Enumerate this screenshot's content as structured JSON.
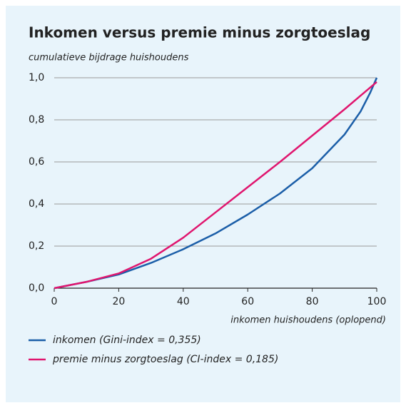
{
  "chart_data": {
    "type": "line",
    "title": "Inkomen versus premie minus zorgtoeslag",
    "y_label": "cumulatieve bijdrage huishoudens",
    "x_label": "inkomen huishoudens (oplopend)",
    "xlim": [
      0,
      100
    ],
    "xticks": [
      0,
      20,
      40,
      60,
      80,
      100
    ],
    "ylim": [
      0,
      1
    ],
    "yticks": [
      {
        "value": 0,
        "label": "0,0"
      },
      {
        "value": 0.2,
        "label": "0,2"
      },
      {
        "value": 0.4,
        "label": "0,4"
      },
      {
        "value": 0.6,
        "label": "0,6"
      },
      {
        "value": 0.8,
        "label": "0,8"
      },
      {
        "value": 1,
        "label": "1,0"
      }
    ],
    "grid": true,
    "series": [
      {
        "name": "inkomen (Gini-index = 0,355)",
        "color": "#1b5ea8",
        "x": [
          0,
          10,
          20,
          30,
          40,
          50,
          60,
          70,
          80,
          90,
          95,
          98,
          100
        ],
        "values": [
          0,
          0.03,
          0.065,
          0.12,
          0.185,
          0.26,
          0.35,
          0.45,
          0.57,
          0.73,
          0.84,
          0.93,
          1.0
        ]
      },
      {
        "name": "premie minus zorgtoeslag (CI-index = 0,185)",
        "color": "#e0156e",
        "x": [
          0,
          10,
          20,
          30,
          40,
          50,
          60,
          70,
          80,
          90,
          100
        ],
        "values": [
          0,
          0.03,
          0.07,
          0.14,
          0.24,
          0.36,
          0.48,
          0.6,
          0.725,
          0.85,
          0.98
        ]
      }
    ]
  }
}
